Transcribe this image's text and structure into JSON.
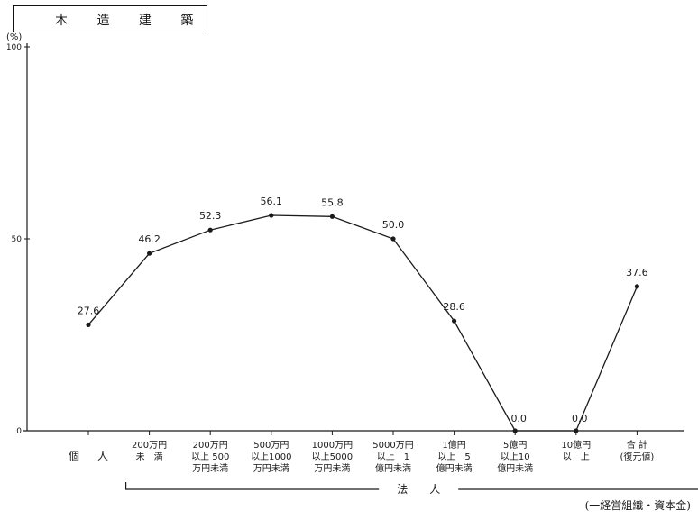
{
  "header": {
    "title": "木 造 建 築",
    "y_unit": "(%)",
    "source": "(一経営組織・資本金)"
  },
  "chart_data": {
    "type": "line",
    "title": "木 造 建 築",
    "ylabel": "(%)",
    "ylim": [
      0,
      100
    ],
    "yticks": [
      0,
      50,
      100
    ],
    "grid": false,
    "categories": [
      [
        "個",
        "人"
      ],
      [
        "200万円",
        "未　満"
      ],
      [
        "200万円",
        "以上 500",
        "万円未満"
      ],
      [
        "500万円",
        "以上1000",
        "万円未満"
      ],
      [
        "1000万円",
        "以上5000",
        "万円未満"
      ],
      [
        "5000万円",
        "以上　1",
        "億円未満"
      ],
      [
        "1億円",
        "以上　5",
        "億円未満"
      ],
      [
        "5億円",
        "以上10",
        "億円未満"
      ],
      [
        "10億円",
        "以　上"
      ],
      [
        "合 計",
        "(復元値)"
      ]
    ],
    "values": [
      27.6,
      46.2,
      52.3,
      56.1,
      55.8,
      50.0,
      28.6,
      0.0,
      0.0,
      37.6
    ],
    "value_labels": [
      "27.6",
      "46.2",
      "52.3",
      "56.1",
      "55.8",
      "50.0",
      "28.6",
      "0.0",
      "0.0",
      "37.6"
    ],
    "group_label": "法　　人",
    "group_range": [
      1,
      8
    ],
    "colors": {
      "line": "#1a1a1a",
      "axis": "#1a1a1a"
    }
  }
}
